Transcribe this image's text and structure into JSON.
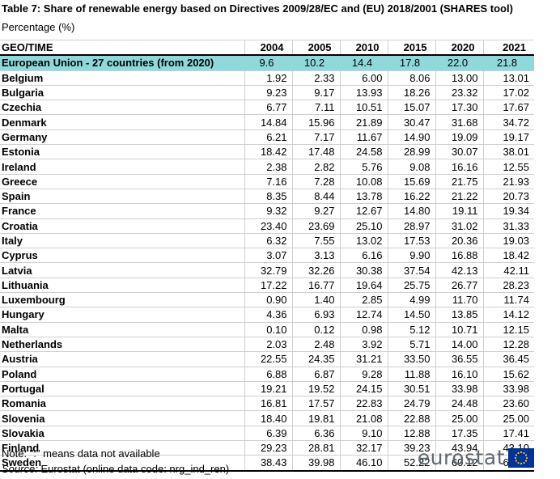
{
  "title": "Table 7: Share of renewable energy based on Directives 2009/28/EC and (EU) 2018/2001 (SHARES tool)",
  "subtitle": "Percentage (%)",
  "table": {
    "headers": [
      "GEO/TIME",
      "2004",
      "2005",
      "2010",
      "2015",
      "2020",
      "2021"
    ],
    "eu_row": {
      "name": "European Union - 27 countries (from 2020)",
      "values": [
        "9.6",
        "10.2",
        "14.4",
        "17.8",
        "22.0",
        "21.8"
      ]
    },
    "rows": [
      {
        "name": "Belgium",
        "values": [
          "1.92",
          "2.33",
          "6.00",
          "8.06",
          "13.00",
          "13.01"
        ]
      },
      {
        "name": "Bulgaria",
        "values": [
          "9.23",
          "9.17",
          "13.93",
          "18.26",
          "23.32",
          "17.02"
        ]
      },
      {
        "name": "Czechia",
        "values": [
          "6.77",
          "7.11",
          "10.51",
          "15.07",
          "17.30",
          "17.67"
        ]
      },
      {
        "name": "Denmark",
        "values": [
          "14.84",
          "15.96",
          "21.89",
          "30.47",
          "31.68",
          "34.72"
        ]
      },
      {
        "name": "Germany",
        "values": [
          "6.21",
          "7.17",
          "11.67",
          "14.90",
          "19.09",
          "19.17"
        ]
      },
      {
        "name": "Estonia",
        "values": [
          "18.42",
          "17.48",
          "24.58",
          "28.99",
          "30.07",
          "38.01"
        ]
      },
      {
        "name": "Ireland",
        "values": [
          "2.38",
          "2.82",
          "5.76",
          "9.08",
          "16.16",
          "12.55"
        ]
      },
      {
        "name": "Greece",
        "values": [
          "7.16",
          "7.28",
          "10.08",
          "15.69",
          "21.75",
          "21.93"
        ]
      },
      {
        "name": "Spain",
        "values": [
          "8.35",
          "8.44",
          "13.78",
          "16.22",
          "21.22",
          "20.73"
        ]
      },
      {
        "name": "France",
        "values": [
          "9.32",
          "9.27",
          "12.67",
          "14.80",
          "19.11",
          "19.34"
        ]
      },
      {
        "name": "Croatia",
        "values": [
          "23.40",
          "23.69",
          "25.10",
          "28.97",
          "31.02",
          "31.33"
        ]
      },
      {
        "name": "Italy",
        "values": [
          "6.32",
          "7.55",
          "13.02",
          "17.53",
          "20.36",
          "19.03"
        ]
      },
      {
        "name": "Cyprus",
        "values": [
          "3.07",
          "3.13",
          "6.16",
          "9.90",
          "16.88",
          "18.42"
        ]
      },
      {
        "name": "Latvia",
        "values": [
          "32.79",
          "32.26",
          "30.38",
          "37.54",
          "42.13",
          "42.11"
        ]
      },
      {
        "name": "Lithuania",
        "values": [
          "17.22",
          "16.77",
          "19.64",
          "25.75",
          "26.77",
          "28.23"
        ]
      },
      {
        "name": "Luxembourg",
        "values": [
          "0.90",
          "1.40",
          "2.85",
          "4.99",
          "11.70",
          "11.74"
        ]
      },
      {
        "name": "Hungary",
        "values": [
          "4.36",
          "6.93",
          "12.74",
          "14.50",
          "13.85",
          "14.12"
        ]
      },
      {
        "name": "Malta",
        "values": [
          "0.10",
          "0.12",
          "0.98",
          "5.12",
          "10.71",
          "12.15"
        ]
      },
      {
        "name": "Netherlands",
        "values": [
          "2.03",
          "2.48",
          "3.92",
          "5.71",
          "14.00",
          "12.28"
        ]
      },
      {
        "name": "Austria",
        "values": [
          "22.55",
          "24.35",
          "31.21",
          "33.50",
          "36.55",
          "36.45"
        ]
      },
      {
        "name": "Poland",
        "values": [
          "6.88",
          "6.87",
          "9.28",
          "11.88",
          "16.10",
          "15.62"
        ]
      },
      {
        "name": "Portugal",
        "values": [
          "19.21",
          "19.52",
          "24.15",
          "30.51",
          "33.98",
          "33.98"
        ]
      },
      {
        "name": "Romania",
        "values": [
          "16.81",
          "17.57",
          "22.83",
          "24.79",
          "24.48",
          "23.60"
        ]
      },
      {
        "name": "Slovenia",
        "values": [
          "18.40",
          "19.81",
          "21.08",
          "22.88",
          "25.00",
          "25.00"
        ]
      },
      {
        "name": "Slovakia",
        "values": [
          "6.39",
          "6.36",
          "9.10",
          "12.88",
          "17.35",
          "17.41"
        ]
      },
      {
        "name": "Finland",
        "values": [
          "29.23",
          "28.81",
          "32.17",
          "39.23",
          "43.94",
          "43.10"
        ]
      },
      {
        "name": "Sweden",
        "values": [
          "38.43",
          "39.98",
          "46.10",
          "52.22",
          "60.12",
          "62.57"
        ]
      }
    ]
  },
  "note": "Note: \":\" means data not available",
  "source": {
    "label": "Source:",
    "text": "Eurostat (online data code: nrg_ind_ren)"
  },
  "logo": {
    "text": "eurostat",
    "flag_color": "#003399",
    "star_color": "#ffcc00"
  },
  "colors": {
    "eu_row_highlight": "#8fd8dc"
  }
}
